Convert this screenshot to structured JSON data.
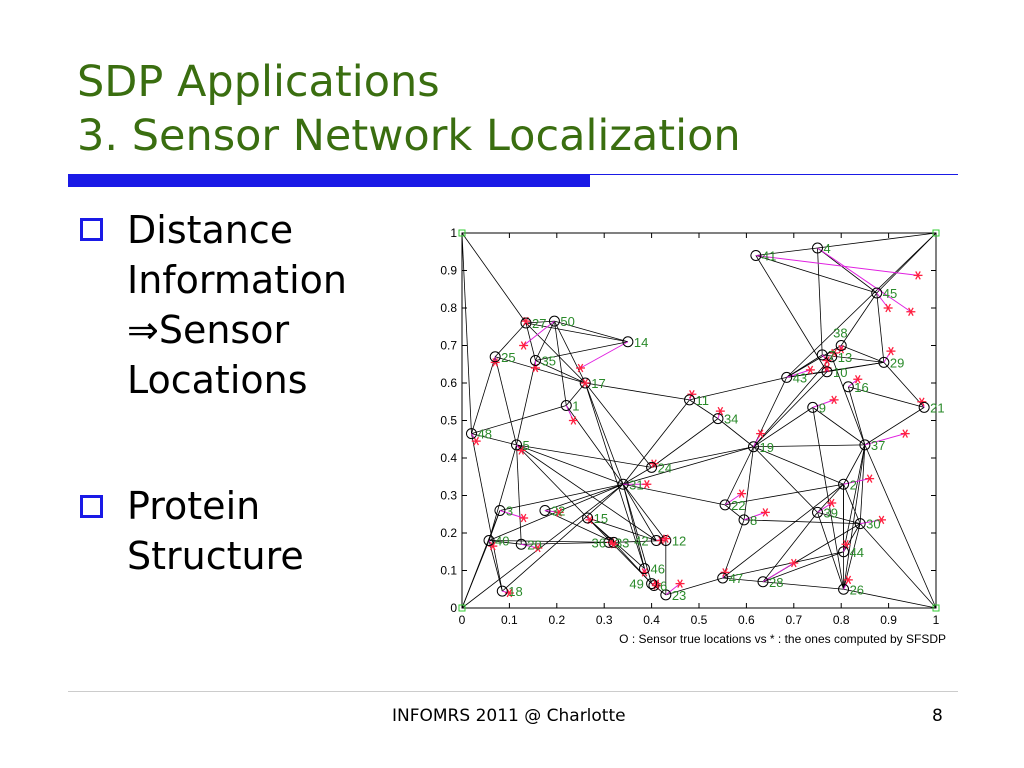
{
  "title": {
    "line1": "SDP Applications",
    "line2": "3. Sensor Network Localization"
  },
  "bullets": [
    {
      "lines": [
        "Distance",
        "Information",
        "⇒Sensor",
        "Locations"
      ]
    },
    {
      "lines": [
        "Protein",
        "Structure"
      ]
    }
  ],
  "footer": {
    "text": "INFOMRS 2011 @ Charlotte",
    "page": "8"
  },
  "colors": {
    "title": "#3a6e10",
    "accent": "#1a1ae6",
    "true_marker": "#000000",
    "estimate_marker": "#ff2040",
    "error_line": "#e020e0",
    "label": "#2a8a2a",
    "anchor": "#33cc33"
  },
  "chart_data": {
    "type": "scatter",
    "xlabel": "O : Sensor true locations   vs   * : the ones computed by SFSDP",
    "xlim": [
      0,
      1
    ],
    "ylim": [
      0,
      1
    ],
    "xticks": [
      "0",
      "0.1",
      "0.2",
      "0.3",
      "0.4",
      "0.5",
      "0.6",
      "0.7",
      "0.8",
      "0.9",
      "1"
    ],
    "yticks": [
      "0",
      "0.1",
      "0.2",
      "0.3",
      "0.4",
      "0.5",
      "0.6",
      "0.7",
      "0.8",
      "0.9",
      "1"
    ],
    "anchors": [
      {
        "id": "A1",
        "x": 0,
        "y": 0
      },
      {
        "id": "A2",
        "x": 1,
        "y": 0
      },
      {
        "id": "A3",
        "x": 0,
        "y": 1
      },
      {
        "id": "A4",
        "x": 1,
        "y": 1
      }
    ],
    "sensors": [
      {
        "id": "1",
        "x": 0.22,
        "y": 0.54,
        "ex": 0.235,
        "ey": 0.5
      },
      {
        "id": "2",
        "x": 0.805,
        "y": 0.33,
        "ex": 0.86,
        "ey": 0.345
      },
      {
        "id": "3",
        "x": 0.08,
        "y": 0.26,
        "ex": 0.13,
        "ey": 0.24
      },
      {
        "id": "4",
        "x": 0.75,
        "y": 0.96,
        "ex": 0.947,
        "ey": 0.79
      },
      {
        "id": "5",
        "x": 0.115,
        "y": 0.435,
        "ex": 0.125,
        "ey": 0.42
      },
      {
        "id": "6",
        "x": 0.405,
        "y": 0.06,
        "ex": 0.41,
        "ey": 0.06
      },
      {
        "id": "7",
        "x": 0.76,
        "y": 0.675,
        "ex": 0.77,
        "ey": 0.66
      },
      {
        "id": "8",
        "x": 0.595,
        "y": 0.235,
        "ex": 0.64,
        "ey": 0.255
      },
      {
        "id": "9",
        "x": 0.74,
        "y": 0.535,
        "ex": 0.785,
        "ey": 0.555
      },
      {
        "id": "10",
        "x": 0.77,
        "y": 0.63,
        "ex": 0.77,
        "ey": 0.64
      },
      {
        "id": "11",
        "x": 0.48,
        "y": 0.555,
        "ex": 0.485,
        "ey": 0.57
      },
      {
        "id": "12",
        "x": 0.43,
        "y": 0.18,
        "ex": 0.42,
        "ey": 0.18
      },
      {
        "id": "13",
        "x": 0.78,
        "y": 0.67,
        "ex": 0.785,
        "ey": 0.68
      },
      {
        "id": "14",
        "x": 0.35,
        "y": 0.71,
        "ex": 0.25,
        "ey": 0.64
      },
      {
        "id": "15",
        "x": 0.265,
        "y": 0.24,
        "ex": 0.27,
        "ey": 0.235
      },
      {
        "id": "16",
        "x": 0.815,
        "y": 0.59,
        "ex": 0.835,
        "ey": 0.61
      },
      {
        "id": "17",
        "x": 0.26,
        "y": 0.6,
        "ex": 0.26,
        "ey": 0.6
      },
      {
        "id": "18",
        "x": 0.085,
        "y": 0.045,
        "ex": 0.1,
        "ey": 0.04
      },
      {
        "id": "19",
        "x": 0.615,
        "y": 0.43,
        "ex": 0.63,
        "ey": 0.465
      },
      {
        "id": "20",
        "x": 0.125,
        "y": 0.17,
        "ex": 0.16,
        "ey": 0.16
      },
      {
        "id": "21",
        "x": 0.975,
        "y": 0.535,
        "ex": 0.97,
        "ey": 0.55
      },
      {
        "id": "22",
        "x": 0.555,
        "y": 0.275,
        "ex": 0.59,
        "ey": 0.305
      },
      {
        "id": "23",
        "x": 0.43,
        "y": 0.035,
        "ex": 0.46,
        "ey": 0.065
      },
      {
        "id": "24",
        "x": 0.4,
        "y": 0.375,
        "ex": 0.405,
        "ey": 0.385
      },
      {
        "id": "25",
        "x": 0.07,
        "y": 0.67,
        "ex": 0.07,
        "ey": 0.655
      },
      {
        "id": "26",
        "x": 0.805,
        "y": 0.05,
        "ex": 0.815,
        "ey": 0.075
      },
      {
        "id": "27",
        "x": 0.135,
        "y": 0.76,
        "ex": 0.135,
        "ey": 0.765
      },
      {
        "id": "28",
        "x": 0.635,
        "y": 0.07,
        "ex": 0.7,
        "ey": 0.12
      },
      {
        "id": "29",
        "x": 0.89,
        "y": 0.655,
        "ex": 0.905,
        "ey": 0.685
      },
      {
        "id": "30",
        "x": 0.84,
        "y": 0.225,
        "ex": 0.885,
        "ey": 0.235
      },
      {
        "id": "31",
        "x": 0.34,
        "y": 0.33,
        "ex": 0.39,
        "ey": 0.33
      },
      {
        "id": "32",
        "x": 0.175,
        "y": 0.26,
        "ex": 0.205,
        "ey": 0.255
      },
      {
        "id": "33",
        "x": 0.31,
        "y": 0.175,
        "ex": 0.315,
        "ey": 0.175
      },
      {
        "id": "34",
        "x": 0.54,
        "y": 0.505,
        "ex": 0.545,
        "ey": 0.525
      },
      {
        "id": "35",
        "x": 0.155,
        "y": 0.66,
        "ex": 0.155,
        "ey": 0.64
      },
      {
        "id": "36",
        "x": 0.32,
        "y": 0.175,
        "ex": 0.32,
        "ey": 0.17
      },
      {
        "id": "37",
        "x": 0.85,
        "y": 0.435,
        "ex": 0.935,
        "ey": 0.465
      },
      {
        "id": "38",
        "x": 0.8,
        "y": 0.7,
        "ex": 0.8,
        "ey": 0.69
      },
      {
        "id": "39",
        "x": 0.75,
        "y": 0.255,
        "ex": 0.78,
        "ey": 0.28
      },
      {
        "id": "40",
        "x": 0.057,
        "y": 0.18,
        "ex": 0.065,
        "ey": 0.165
      },
      {
        "id": "41",
        "x": 0.62,
        "y": 0.94,
        "ex": 0.962,
        "ey": 0.887
      },
      {
        "id": "42",
        "x": 0.41,
        "y": 0.18,
        "ex": 0.43,
        "ey": 0.185
      },
      {
        "id": "43",
        "x": 0.685,
        "y": 0.615,
        "ex": 0.735,
        "ey": 0.635
      },
      {
        "id": "44",
        "x": 0.805,
        "y": 0.15,
        "ex": 0.81,
        "ey": 0.17
      },
      {
        "id": "45",
        "x": 0.875,
        "y": 0.84,
        "ex": 0.899,
        "ey": 0.8
      },
      {
        "id": "46",
        "x": 0.385,
        "y": 0.105,
        "ex": 0.385,
        "ey": 0.095
      },
      {
        "id": "47",
        "x": 0.55,
        "y": 0.08,
        "ex": 0.555,
        "ey": 0.095
      },
      {
        "id": "48",
        "x": 0.02,
        "y": 0.465,
        "ex": 0.03,
        "ey": 0.445
      },
      {
        "id": "49",
        "x": 0.4,
        "y": 0.065,
        "ex": 0.41,
        "ey": 0.065
      },
      {
        "id": "50",
        "x": 0.195,
        "y": 0.765,
        "ex": 0.13,
        "ey": 0.7
      }
    ],
    "edges": [
      [
        "A3",
        "27"
      ],
      [
        "27",
        "50"
      ],
      [
        "27",
        "14"
      ],
      [
        "50",
        "14"
      ],
      [
        "27",
        "25"
      ],
      [
        "27",
        "17"
      ],
      [
        "27",
        "35"
      ],
      [
        "50",
        "35"
      ],
      [
        "50",
        "17"
      ],
      [
        "50",
        "1"
      ],
      [
        "35",
        "14"
      ],
      [
        "25",
        "17"
      ],
      [
        "25",
        "5"
      ],
      [
        "35",
        "17"
      ],
      [
        "35",
        "5"
      ],
      [
        "17",
        "1"
      ],
      [
        "17",
        "11"
      ],
      [
        "17",
        "31"
      ],
      [
        "17",
        "24"
      ],
      [
        "17",
        "46"
      ],
      [
        "1",
        "48"
      ],
      [
        "1",
        "31"
      ],
      [
        "48",
        "5"
      ],
      [
        "48",
        "18"
      ],
      [
        "48",
        "25"
      ],
      [
        "5",
        "40"
      ],
      [
        "5",
        "20"
      ],
      [
        "5",
        "31"
      ],
      [
        "5",
        "24"
      ],
      [
        "5",
        "15"
      ],
      [
        "5",
        "42"
      ],
      [
        "40",
        "3"
      ],
      [
        "40",
        "20"
      ],
      [
        "40",
        "36"
      ],
      [
        "40",
        "31"
      ],
      [
        "40",
        "A1"
      ],
      [
        "40",
        "18"
      ],
      [
        "3",
        "31"
      ],
      [
        "32",
        "31"
      ],
      [
        "32",
        "36"
      ],
      [
        "15",
        "36"
      ],
      [
        "15",
        "46"
      ],
      [
        "15",
        "49"
      ],
      [
        "15",
        "42"
      ],
      [
        "20",
        "36"
      ],
      [
        "18",
        "31"
      ],
      [
        "31",
        "24"
      ],
      [
        "31",
        "46"
      ],
      [
        "31",
        "42"
      ],
      [
        "31",
        "12"
      ],
      [
        "31",
        "49"
      ],
      [
        "31",
        "19"
      ],
      [
        "31",
        "22"
      ],
      [
        "31",
        "11"
      ],
      [
        "36",
        "49"
      ],
      [
        "36",
        "12"
      ],
      [
        "24",
        "34"
      ],
      [
        "24",
        "19"
      ],
      [
        "11",
        "34"
      ],
      [
        "11",
        "43"
      ],
      [
        "34",
        "19"
      ],
      [
        "19",
        "43"
      ],
      [
        "19",
        "10"
      ],
      [
        "19",
        "2"
      ],
      [
        "19",
        "37"
      ],
      [
        "19",
        "8"
      ],
      [
        "19",
        "22"
      ],
      [
        "19",
        "39"
      ],
      [
        "19",
        "13"
      ],
      [
        "43",
        "10"
      ],
      [
        "43",
        "29"
      ],
      [
        "43",
        "38"
      ],
      [
        "43",
        "7"
      ],
      [
        "10",
        "29"
      ],
      [
        "7",
        "29"
      ],
      [
        "38",
        "29"
      ],
      [
        "13",
        "37"
      ],
      [
        "16",
        "37"
      ],
      [
        "16",
        "21"
      ],
      [
        "9",
        "37"
      ],
      [
        "9",
        "26"
      ],
      [
        "9",
        "19"
      ],
      [
        "38",
        "45"
      ],
      [
        "45",
        "4"
      ],
      [
        "45",
        "41"
      ],
      [
        "41",
        "4"
      ],
      [
        "41",
        "10"
      ],
      [
        "4",
        "7"
      ],
      [
        "45",
        "A4"
      ],
      [
        "4",
        "A4"
      ],
      [
        "45",
        "29"
      ],
      [
        "29",
        "21"
      ],
      [
        "21",
        "37"
      ],
      [
        "37",
        "2"
      ],
      [
        "37",
        "30"
      ],
      [
        "37",
        "44"
      ],
      [
        "37",
        "26"
      ],
      [
        "2",
        "22"
      ],
      [
        "2",
        "30"
      ],
      [
        "2",
        "39"
      ],
      [
        "2",
        "44"
      ],
      [
        "2",
        "47"
      ],
      [
        "2",
        "26"
      ],
      [
        "39",
        "30"
      ],
      [
        "39",
        "28"
      ],
      [
        "39",
        "26"
      ],
      [
        "8",
        "30"
      ],
      [
        "8",
        "47"
      ],
      [
        "8",
        "22"
      ],
      [
        "30",
        "44"
      ],
      [
        "30",
        "28"
      ],
      [
        "30",
        "26"
      ],
      [
        "30",
        "A2"
      ],
      [
        "44",
        "28"
      ],
      [
        "44",
        "47"
      ],
      [
        "26",
        "28"
      ],
      [
        "26",
        "A2"
      ],
      [
        "47",
        "28"
      ],
      [
        "47",
        "23"
      ],
      [
        "23",
        "12"
      ],
      [
        "23",
        "49"
      ],
      [
        "A2",
        "37"
      ],
      [
        "A1",
        "31"
      ],
      [
        "A3",
        "48"
      ],
      [
        "A4",
        "43"
      ],
      [
        "A1",
        "3"
      ]
    ]
  }
}
